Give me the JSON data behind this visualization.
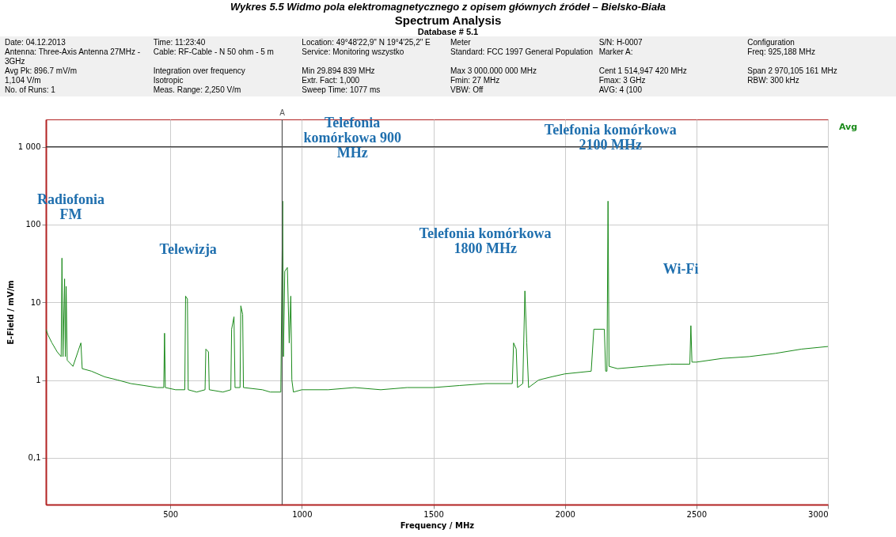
{
  "chart_data": {
    "type": "line",
    "title": "Spectrum Analysis",
    "subtitle": "Database # 5.1",
    "xlabel": "Frequency / MHz",
    "ylabel": "E-Field / mV/m",
    "annotations": [
      "Wykres 5.5 Widmo pola elektromagnetycznego z opisem głównych źródeł – Bielsko-Biała",
      "Radiofonia\nFM",
      "Telewizja",
      "Telefonia\nkomórkowa 900\nMHz",
      "Telefonia komórkowa\n1800 MHz",
      "Telefonia komórkowa\n2100 MHz",
      "Wi-Fi",
      "Date: 04.12.2013",
      "Time: 11:23:40",
      "Location: 49°48'22,9\" N 19°4'25,2\" E",
      "Meter",
      "S/N: H-0007",
      "Configuration",
      "Antenna: Three-Axis Antenna 27MHz - 3GHz",
      "Cable: RF-Cable - N 50 ohm - 5 m",
      "Service: Monitoring wszystko",
      "Standard: FCC 1997 General Population",
      "Marker A:",
      "Freq: 925,188 MHz",
      "Avg Pk: 896.7 mV/m",
      "Integration over frequency",
      "Min 29.894 839 MHz",
      "Max 3 000.000 000 MHz",
      "Cent 1 514,947 420 MHz",
      "Span 2 970,105 161 MHz",
      "1,104 V/m",
      "Isotropic",
      "Extr. Fact: 1,000",
      "Fmin: 27 MHz",
      "Fmax: 3 GHz",
      "RBW: 300 kHz",
      "No. of Runs: 1",
      "Meas. Range: 2,250 V/m",
      "Sweep Time: 1077 ms",
      "VBW: Off",
      "AVG: 4 (100"
    ],
    "x": [
      27,
      35,
      50,
      70,
      85,
      88,
      92,
      98,
      101,
      104,
      108,
      130,
      160,
      165,
      200,
      250,
      300,
      350,
      400,
      450,
      475,
      478,
      481,
      520,
      555,
      558,
      565,
      568,
      600,
      632,
      635,
      645,
      648,
      700,
      730,
      733,
      742,
      746,
      765,
      768,
      775,
      778,
      850,
      880,
      920,
      927,
      930,
      935,
      945,
      952,
      958,
      962,
      968,
      1000,
      1100,
      1200,
      1300,
      1400,
      1500,
      1600,
      1700,
      1800,
      1805,
      1815,
      1820,
      1840,
      1848,
      1855,
      1862,
      1900,
      1950,
      2000,
      2100,
      2110,
      2150,
      2155,
      2160,
      2164,
      2168,
      2200,
      2300,
      2400,
      2475,
      2479,
      2483,
      2500,
      2600,
      2700,
      2800,
      2900,
      3000
    ],
    "series": [
      {
        "name": "Avg",
        "color": "#1a8a1a",
        "values": [
          4.5,
          3.8,
          3,
          2.3,
          2,
          37,
          2,
          20,
          2,
          16,
          1.8,
          1.5,
          3,
          1.4,
          1.3,
          1.1,
          1,
          0.9,
          0.85,
          0.8,
          0.8,
          4,
          0.8,
          0.75,
          0.75,
          12,
          11,
          0.75,
          0.7,
          0.75,
          2.5,
          2.3,
          0.75,
          0.7,
          0.75,
          4.5,
          6.5,
          0.8,
          0.8,
          9,
          7,
          0.8,
          0.75,
          0.7,
          0.7,
          200,
          2,
          25,
          28,
          3,
          12,
          1,
          0.7,
          0.75,
          0.75,
          0.8,
          0.75,
          0.8,
          0.8,
          0.85,
          0.9,
          0.9,
          3,
          2.5,
          0.8,
          0.9,
          14,
          3,
          0.8,
          1,
          1.1,
          1.2,
          1.3,
          4.5,
          4.5,
          1.3,
          1.3,
          200,
          1.5,
          1.4,
          1.5,
          1.6,
          1.6,
          5,
          1.7,
          1.7,
          1.9,
          2,
          2.2,
          2.5,
          2.7
        ]
      }
    ],
    "xlim": [
      27,
      3000
    ],
    "ylim": [
      0.025,
      2250
    ],
    "xticks": [
      500,
      1000,
      1500,
      2000,
      2500,
      3000
    ],
    "yticks": [
      {
        "value": 1000,
        "label": "1 000"
      },
      100,
      10,
      1,
      {
        "value": 0.1,
        "label": "0,1"
      }
    ],
    "log": "y",
    "grid": true,
    "line_style": "solid",
    "ref_lines": [
      {
        "axis": "y",
        "value": 1000,
        "color": "#333333"
      },
      {
        "axis": "x",
        "value": 925.188,
        "label": "A",
        "color": "#555555"
      }
    ]
  }
}
